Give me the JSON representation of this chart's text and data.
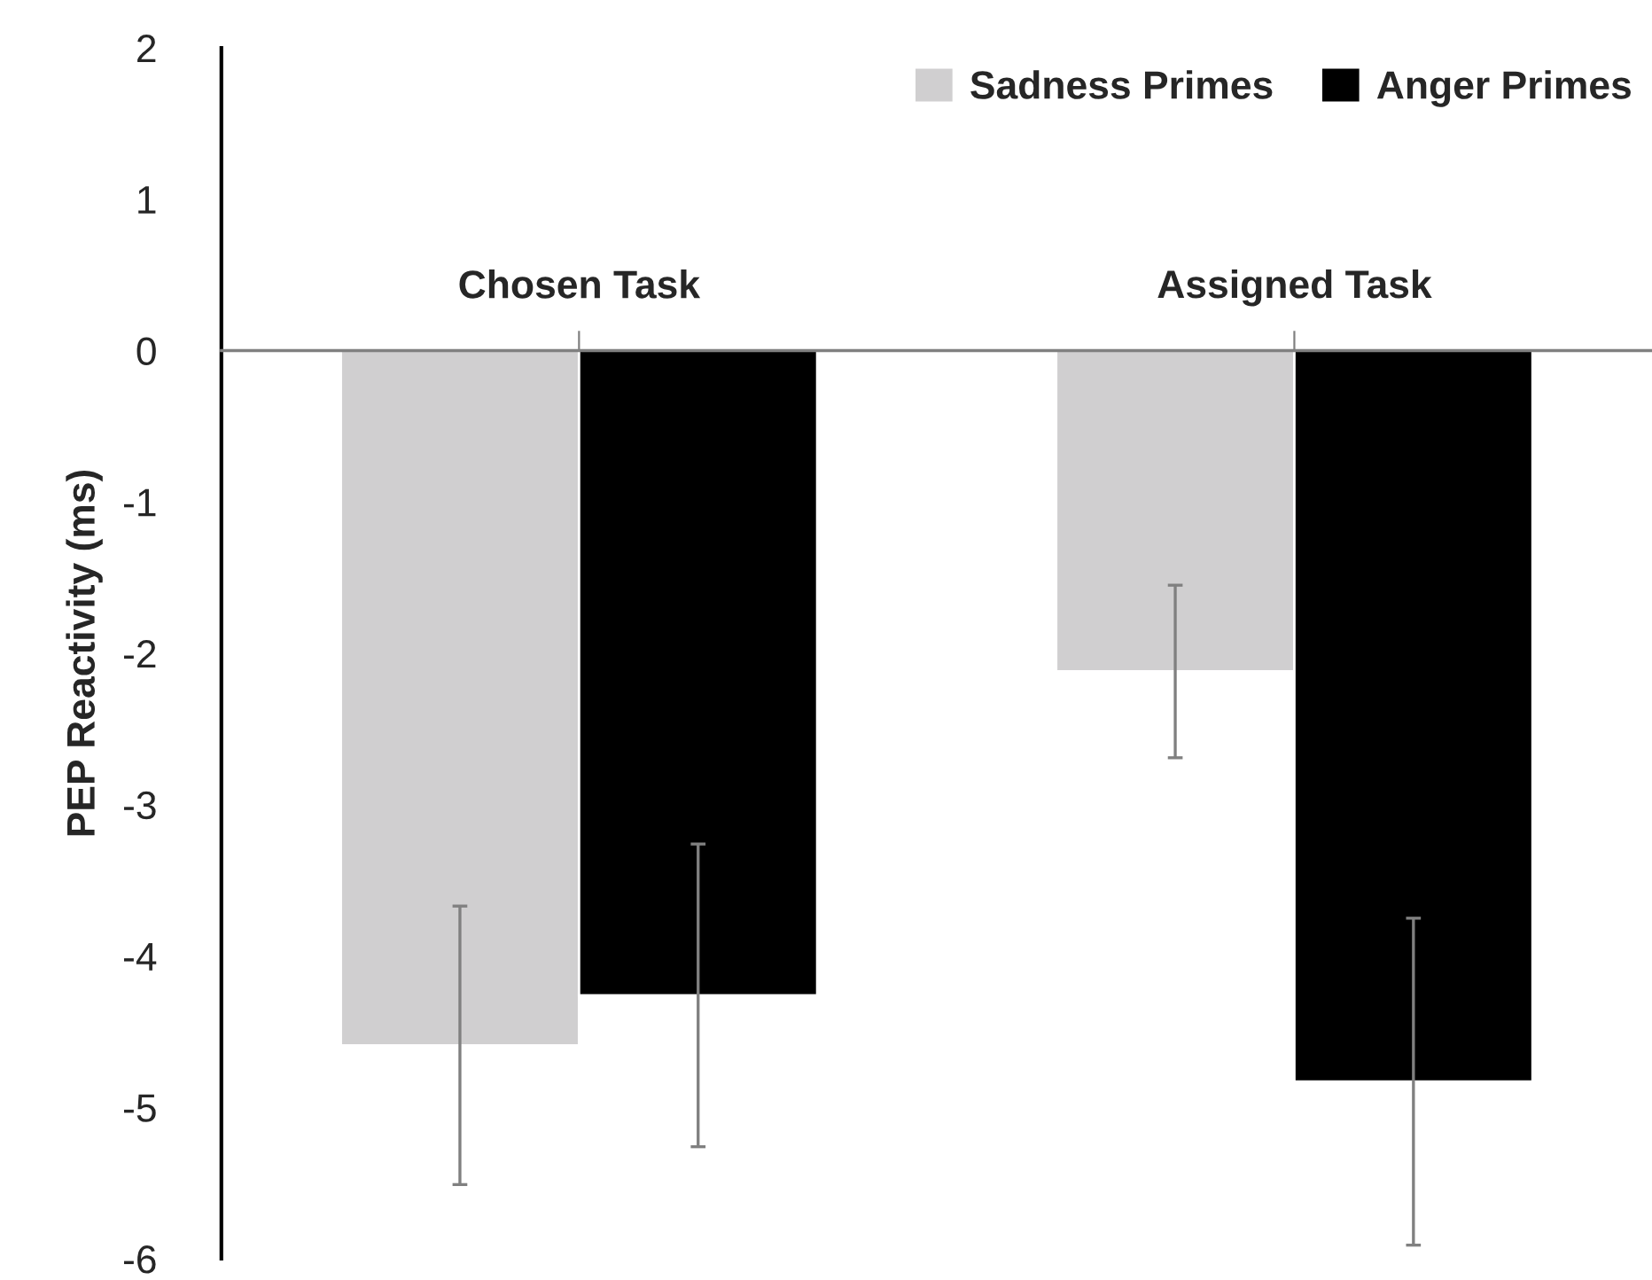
{
  "chart_data": {
    "type": "bar",
    "ylabel": "PEP Reactivity (ms)",
    "categories": [
      "Chosen Task",
      "Assigned Task"
    ],
    "series": [
      {
        "name": "Sadness Primes",
        "color": "#d0cfd0",
        "values": [
          -4.59,
          -2.12
        ],
        "errors": [
          0.92,
          0.57
        ]
      },
      {
        "name": "Anger Primes",
        "color": "#000000",
        "values": [
          -4.26,
          -4.83
        ],
        "errors": [
          1.0,
          1.08
        ]
      }
    ],
    "ylim": [
      -6,
      2
    ],
    "yticks": [
      -6,
      -5,
      -4,
      -3,
      -2,
      -1,
      0,
      1,
      2
    ],
    "legend": "top right",
    "grid": false
  }
}
